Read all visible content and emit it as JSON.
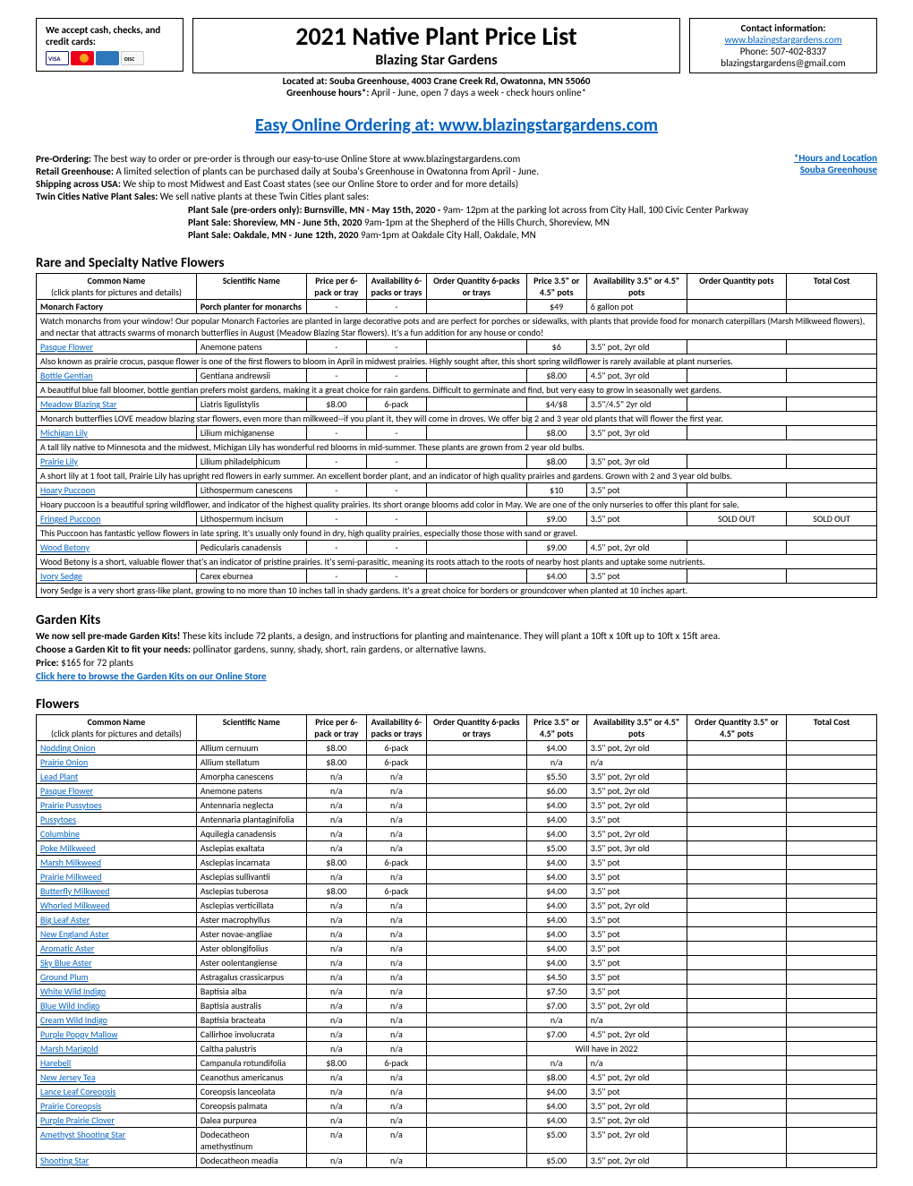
{
  "credit": {
    "text": "We accept cash, checks, and credit cards:"
  },
  "title": {
    "main": "2021 Native Plant Price List",
    "sub": "Blazing Star Gardens"
  },
  "contact": {
    "header": "Contact information:",
    "url": "www.blazingstargardens.com",
    "phone": "Phone: 507-402-8337",
    "email": "blazingstargardens@gmail.com"
  },
  "located": "Located at: Souba Greenhouse, 4003 Crane Creek Rd, Owatonna, MN 55060",
  "hours_label": "Greenhouse hours*:",
  "hours_text": " April - June, open 7 days a week - check hours online*",
  "biglink_prefix": "Easy Online Ordering at:  ",
  "biglink_url": "www.blazingstargardens.com",
  "info": {
    "preorder_label": "Pre-Ordering: ",
    "preorder_text": "The best way to order or pre-order is through our easy-to-use Online Store at www.blazingstargardens.com",
    "retail_label": "Retail Greenhouse: ",
    "retail_text": "A limited selection of plants can be purchased daily at Souba's Greenhouse in Owatonna from April - June.",
    "shipping_label": "Shipping across USA:  ",
    "shipping_text": "We ship to most Midwest and East Coast states (see our Online Store to order and for more details)",
    "twin_label": "Twin Cities Native Plant Sales: ",
    "twin_text": "We sell native plants at these Twin Cities plant sales:",
    "right_link1": "*Hours and Location",
    "right_link2": "Souba Greenhouse"
  },
  "sales": [
    {
      "b": "Plant Sale (pre-orders only): Burnsville, MN - May 15th, 2020 - ",
      "t": "9am- 12pm at the parking lot across from City Hall, 100 Civic Center Parkway"
    },
    {
      "b": "Plant Sale: Shoreview, MN - June 5th, 2020 ",
      "t": "9am-1pm at the Shepherd of the Hills Church, Shoreview, MN"
    },
    {
      "b": "Plant Sale: Oakdale, MN - June 12th, 2020  ",
      "t": "9am-1pm at  Oakdale City Hall, Oakdale, MN"
    }
  ],
  "section1": "Rare and Specialty Native Flowers",
  "headers": {
    "common_line1": "Common Name",
    "common_line2": "(click plants for pictures and details)",
    "scientific": "Scientific Name",
    "price6": "Price per 6-pack or tray",
    "avail6": "Availability 6-packs or trays",
    "order6": "Order Quantity 6-packs or trays",
    "pricepot": "Price 3.5\" or 4.5\" pots",
    "availpot": "Availability 3.5\" or 4.5\" pots",
    "orderpot": "Order Quantity pots",
    "orderpot2": "Order Quantity 3.5\" or 4.5\" pots",
    "total": "Total Cost"
  },
  "rare": [
    {
      "c": "Monarch Factory",
      "s": "Porch planter for monarchs",
      "p6": "-",
      "a6": "-",
      "pp": "$49",
      "ap": "6 gallon pot",
      "op": "",
      "tc": "",
      "bold": true,
      "desc": "Watch monarchs from your window! Our popular Monarch Factories are planted in large decorative pots and are perfect for porches or sidewalks, with plants that provide food for monarch caterpillars (Marsh Milkweed flowers), and nectar that attracts swarms of monarch butterflies in August (Meadow Blazing Star flowers). It's a fun addition for any house or condo!"
    },
    {
      "c": "Pasque Flower",
      "s": "Anemone patens",
      "p6": "-",
      "a6": "-",
      "pp": "$6",
      "ap": "3.5\" pot, 2yr old",
      "op": "",
      "tc": "",
      "desc": "Also known as prairie crocus, pasque flower is one of the first flowers to bloom in April in midwest prairies. Highly sought after, this short spring wildflower is rarely available at plant nurseries."
    },
    {
      "c": "Bottle Gentian",
      "s": "Gentiana andrewsii",
      "p6": "-",
      "a6": "-",
      "pp": "$8.00",
      "ap": "4.5\" pot, 3yr old",
      "op": "",
      "tc": "",
      "desc": "A beautiful blue fall bloomer, bottle gentian prefers moist gardens, making it a great choice for rain gardens. Difficult to germinate and find, but very easy to grow in seasonally wet gardens."
    },
    {
      "c": "Meadow Blazing Star",
      "s": "Liatris ligulistylis",
      "p6": "$8.00",
      "a6": "6-pack",
      "pp": "$4/$8",
      "ap": "3.5\"/4.5\" 2yr old",
      "op": "",
      "tc": "",
      "desc": "Monarch butterflies LOVE meadow blazing star flowers, even more than milkweed--if you plant it, they will come in droves. We offer big 2 and 3 year old plants that will flower the first year."
    },
    {
      "c": "Michigan Lily",
      "s": "Lilium michiganense",
      "p6": "-",
      "a6": "-",
      "pp": "$8.00",
      "ap": "3.5\" pot, 3yr old",
      "op": "",
      "tc": "",
      "desc": "A tall lily native to Minnesota and the midwest, Michigan Lily has wonderful red blooms in mid-summer. These plants are grown from 2 year old bulbs."
    },
    {
      "c": "Prairie Lily",
      "s": "Lilium philadelphicum",
      "p6": "-",
      "a6": "-",
      "pp": "$8.00",
      "ap": "3.5\" pot, 3yr old",
      "op": "",
      "tc": "",
      "desc": "A short lily at 1 foot tall, Prairie Lily has upright red flowers in early summer. An excellent border plant, and an indicator of high quality prairies and gardens. Grown with 2 and 3 year old bulbs."
    },
    {
      "c": "Hoary Puccoon",
      "s": "Lithospermum canescens",
      "p6": "-",
      "a6": "-",
      "pp": "$10",
      "ap": "3.5\" pot",
      "op": "",
      "tc": "",
      "desc": "Hoary puccoon is a beautiful spring wildflower, and indicator of the highest quality prairies. Its short orange blooms add color in May. We are one of the only nurseries to offer this plant for sale."
    },
    {
      "c": "Fringed Puccoon",
      "s": "Lithospermum incisum",
      "p6": "-",
      "a6": "-",
      "pp": "$9.00",
      "ap": "3.5\" pot",
      "op": "SOLD OUT",
      "tc": "SOLD OUT",
      "desc": "This Puccoon has fantastic yellow flowers in late spring. It's usually only found in dry, high quality prairies, especially those those with sand or gravel."
    },
    {
      "c": "Wood Betony",
      "s": "Pedicularis canadensis",
      "p6": "-",
      "a6": "-",
      "pp": "$9.00",
      "ap": "4.5\" pot, 2yr old",
      "op": "",
      "tc": "",
      "desc": "Wood Betony is a short, valuable flower that's an indicator of pristine prairies. It's semi-parasitic, meaning its roots attach to the roots of nearby host plants and uptake some nutrients."
    },
    {
      "c": "Ivory Sedge",
      "s": "Carex eburnea",
      "p6": "-",
      "a6": "-",
      "pp": "$4.00",
      "ap": "3.5\" pot",
      "op": "",
      "tc": "",
      "desc": "Ivory Sedge is a very short grass-like plant, growing to no more than 10 inches tall in shady gardens. It's a great choice for borders or groundcover when planted at 10 inches apart."
    }
  ],
  "kits": {
    "title": "Garden Kits",
    "l1b": "We now sell pre-made Garden Kits! ",
    "l1": "These kits include 72 plants, a design, and instructions for planting and maintenance. They will plant a 10ft x 10ft up to 10ft x 15ft area.",
    "l2b": "Choose a Garden Kit to fit your needs: ",
    "l2": "pollinator gardens, sunny, shady, short, rain gardens, or alternative lawns.",
    "l3b": "Price: ",
    "l3": "$165 for 72 plants",
    "link": "Click here to browse the Garden Kits on our Online Store"
  },
  "section3": "Flowers",
  "flowers": [
    {
      "c": "Nodding Onion",
      "s": "Allium cernuum",
      "p6": "$8.00",
      "a6": "6-pack",
      "pp": "$4.00",
      "ap": "3.5\" pot, 2yr old"
    },
    {
      "c": "Prairie Onion",
      "s": "Allium stellatum",
      "p6": "$8.00",
      "a6": "6-pack",
      "pp": "n/a",
      "ap": "n/a"
    },
    {
      "c": "Lead Plant",
      "s": "Amorpha canescens",
      "p6": "n/a",
      "a6": "n/a",
      "pp": "$5.50",
      "ap": "3.5\" pot, 2yr old"
    },
    {
      "c": "Pasque Flower",
      "s": "Anemone patens",
      "p6": "n/a",
      "a6": "n/a",
      "pp": "$6.00",
      "ap": "3.5\" pot, 2yr old"
    },
    {
      "c": "Prairie Pussytoes",
      "s": "Antennaria neglecta",
      "p6": "n/a",
      "a6": "n/a",
      "pp": "$4.00",
      "ap": "3.5\" pot, 2yr old"
    },
    {
      "c": "Pussytoes",
      "s": "Antennaria plantaginifolia",
      "p6": "n/a",
      "a6": "n/a",
      "pp": "$4.00",
      "ap": "3.5\" pot"
    },
    {
      "c": "Columbine",
      "s": "Aquilegia canadensis",
      "p6": "n/a",
      "a6": "n/a",
      "pp": "$4.00",
      "ap": "3.5\" pot, 2yr old"
    },
    {
      "c": "Poke Milkweed",
      "s": "Asclepias exaltata",
      "p6": "n/a",
      "a6": "n/a",
      "pp": "$5.00",
      "ap": "3.5\" pot, 3yr old"
    },
    {
      "c": "Marsh Milkweed",
      "s": "Asclepias incarnata",
      "p6": "$8.00",
      "a6": "6-pack",
      "pp": "$4.00",
      "ap": "3.5\" pot"
    },
    {
      "c": "Prairie Milkweed",
      "s": "Asclepias sullivantii",
      "p6": "n/a",
      "a6": "n/a",
      "pp": "$4.00",
      "ap": "3.5\" pot"
    },
    {
      "c": "Butterfly Milkweed",
      "s": "Asclepias tuberosa",
      "p6": "$8.00",
      "a6": "6-pack",
      "pp": "$4.00",
      "ap": "3.5\" pot"
    },
    {
      "c": "Whorled Milkweed",
      "s": "Asclepias verticillata",
      "p6": "n/a",
      "a6": "n/a",
      "pp": "$4.00",
      "ap": "3.5\" pot, 2yr old"
    },
    {
      "c": "Big Leaf Aster",
      "s": "Aster macrophyllus",
      "p6": "n/a",
      "a6": "n/a",
      "pp": "$4.00",
      "ap": "3.5\" pot"
    },
    {
      "c": "New England Aster",
      "s": "Aster novae-angliae",
      "p6": "n/a",
      "a6": "n/a",
      "pp": "$4.00",
      "ap": "3.5\" pot"
    },
    {
      "c": "Aromatic Aster",
      "s": "Aster oblongifolius",
      "p6": "n/a",
      "a6": "n/a",
      "pp": "$4.00",
      "ap": "3.5\" pot"
    },
    {
      "c": "Sky Blue Aster",
      "s": "Aster oolentangiense",
      "p6": "n/a",
      "a6": "n/a",
      "pp": "$4.00",
      "ap": "3.5\" pot"
    },
    {
      "c": "Ground Plum",
      "s": "Astragalus crassicarpus",
      "p6": "n/a",
      "a6": "n/a",
      "pp": "$4.50",
      "ap": "3.5\" pot"
    },
    {
      "c": "White Wild Indigo",
      "s": "Baptisia alba",
      "p6": "n/a",
      "a6": "n/a",
      "pp": "$7.50",
      "ap": "3.5\" pot"
    },
    {
      "c": "Blue Wild Indigo",
      "s": "Baptisia australis",
      "p6": "n/a",
      "a6": "n/a",
      "pp": "$7.00",
      "ap": "3.5\" pot, 2yr old"
    },
    {
      "c": "Cream Wild Indigo",
      "s": "Baptisia bracteata",
      "p6": "n/a",
      "a6": "n/a",
      "pp": "n/a",
      "ap": "n/a"
    },
    {
      "c": "Purple Poppy Mallow",
      "s": "Callirhoe involucrata",
      "p6": "n/a",
      "a6": "n/a",
      "pp": "$7.00",
      "ap": "4.5\" pot, 2yr old"
    },
    {
      "c": "Marsh Marigold",
      "s": "Caltha palustris",
      "p6": "n/a",
      "a6": "n/a",
      "pp": "",
      "ap": "Will have in 2022",
      "span": true
    },
    {
      "c": "Harebell",
      "s": "Campanula rotundifolia",
      "p6": "$8.00",
      "a6": "6-pack",
      "pp": "n/a",
      "ap": "n/a"
    },
    {
      "c": "New Jersey Tea",
      "s": "Ceanothus americanus",
      "p6": "n/a",
      "a6": "n/a",
      "pp": "$8.00",
      "ap": "4.5\" pot, 2yr old"
    },
    {
      "c": "Lance Leaf Coreopsis",
      "s": "Coreopsis lanceolata",
      "p6": "n/a",
      "a6": "n/a",
      "pp": "$4.00",
      "ap": "3.5\" pot"
    },
    {
      "c": "Prairie Coreopsis",
      "s": "Coreopsis palmata",
      "p6": "n/a",
      "a6": "n/a",
      "pp": "$4.00",
      "ap": "3.5\" pot, 2yr old"
    },
    {
      "c": "Purple Prairie Clover",
      "s": "Dalea purpurea",
      "p6": "n/a",
      "a6": "n/a",
      "pp": "$4.00",
      "ap": "3.5\" pot, 2yr old"
    },
    {
      "c": "Amethyst Shooting Star",
      "s": "Dodecatheon amethystinum",
      "p6": "n/a",
      "a6": "n/a",
      "pp": "$5.00",
      "ap": "3.5\" pot, 2yr old"
    },
    {
      "c": "Shooting Star",
      "s": "Dodecatheon meadia",
      "p6": "n/a",
      "a6": "n/a",
      "pp": "$5.00",
      "ap": "3.5\" pot, 2yr old"
    }
  ]
}
